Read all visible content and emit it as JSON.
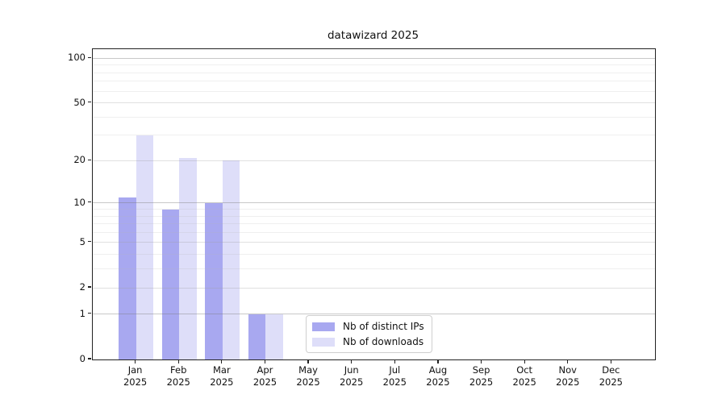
{
  "chart_data": {
    "type": "bar",
    "title": "datawizard 2025",
    "categories": [
      "Jan",
      "Feb",
      "Mar",
      "Apr",
      "May",
      "Jun",
      "Jul",
      "Aug",
      "Sep",
      "Oct",
      "Nov",
      "Dec"
    ],
    "category_year": "2025",
    "series": [
      {
        "name": "Nb of distinct IPs",
        "color": "#a8a8f0",
        "values": [
          11,
          9,
          10,
          1,
          0,
          0,
          0,
          0,
          0,
          0,
          0,
          0
        ]
      },
      {
        "name": "Nb of downloads",
        "color": "#dedef9",
        "values": [
          30,
          21,
          20,
          1,
          0,
          0,
          0,
          0,
          0,
          0,
          0,
          0
        ]
      }
    ],
    "yscale": "log1p",
    "ylim": [
      0,
      115
    ],
    "yticks": [
      0,
      1,
      2,
      5,
      10,
      20,
      50,
      100
    ],
    "yticks_decade": [
      1,
      10,
      100
    ],
    "yticks_mid": [
      2,
      5,
      20,
      50
    ],
    "yticks_minor": [
      3,
      4,
      6,
      7,
      8,
      9,
      30,
      40,
      60,
      70,
      80,
      90
    ],
    "grid": "horizontal",
    "legend_position": "bottom-center",
    "xlabel": "",
    "ylabel": ""
  }
}
